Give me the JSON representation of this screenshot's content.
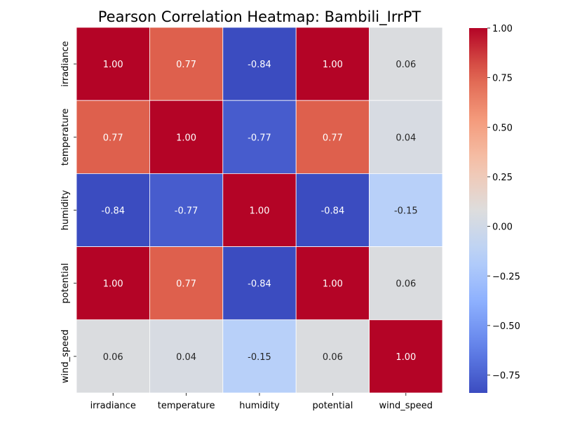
{
  "chart_data": {
    "type": "heatmap",
    "title": "Pearson Correlation Heatmap: Bambili_IrrPT",
    "x_labels": [
      "irradiance",
      "temperature",
      "humidity",
      "potential",
      "wind_speed"
    ],
    "y_labels": [
      "irradiance",
      "temperature",
      "humidity",
      "potential",
      "wind_speed"
    ],
    "values": [
      [
        1.0,
        0.77,
        -0.84,
        1.0,
        0.06
      ],
      [
        0.77,
        1.0,
        -0.77,
        0.77,
        0.04
      ],
      [
        -0.84,
        -0.77,
        1.0,
        -0.84,
        -0.15
      ],
      [
        1.0,
        0.77,
        -0.84,
        1.0,
        0.06
      ],
      [
        0.06,
        0.04,
        -0.15,
        0.06,
        1.0
      ]
    ],
    "value_labels": [
      [
        "1.00",
        "0.77",
        "-0.84",
        "1.00",
        "0.06"
      ],
      [
        "0.77",
        "1.00",
        "-0.77",
        "0.77",
        "0.04"
      ],
      [
        "-0.84",
        "-0.77",
        "1.00",
        "-0.84",
        "-0.15"
      ],
      [
        "1.00",
        "0.77",
        "-0.84",
        "1.00",
        "0.06"
      ],
      [
        "0.06",
        "0.04",
        "-0.15",
        "0.06",
        "1.00"
      ]
    ],
    "colormap": "coolwarm",
    "vmin": -0.84,
    "vmax": 1.0,
    "colorbar": {
      "ticks": [
        1.0,
        0.75,
        0.5,
        0.25,
        0.0,
        -0.25,
        -0.5,
        -0.75
      ],
      "tick_labels": [
        "1.00",
        "0.75",
        "0.50",
        "0.25",
        "0.00",
        "−0.25",
        "−0.50",
        "−0.75"
      ]
    },
    "xlabel": "",
    "ylabel": "",
    "grid_line_color": "#ffffff",
    "legend": "colorbar-right"
  }
}
